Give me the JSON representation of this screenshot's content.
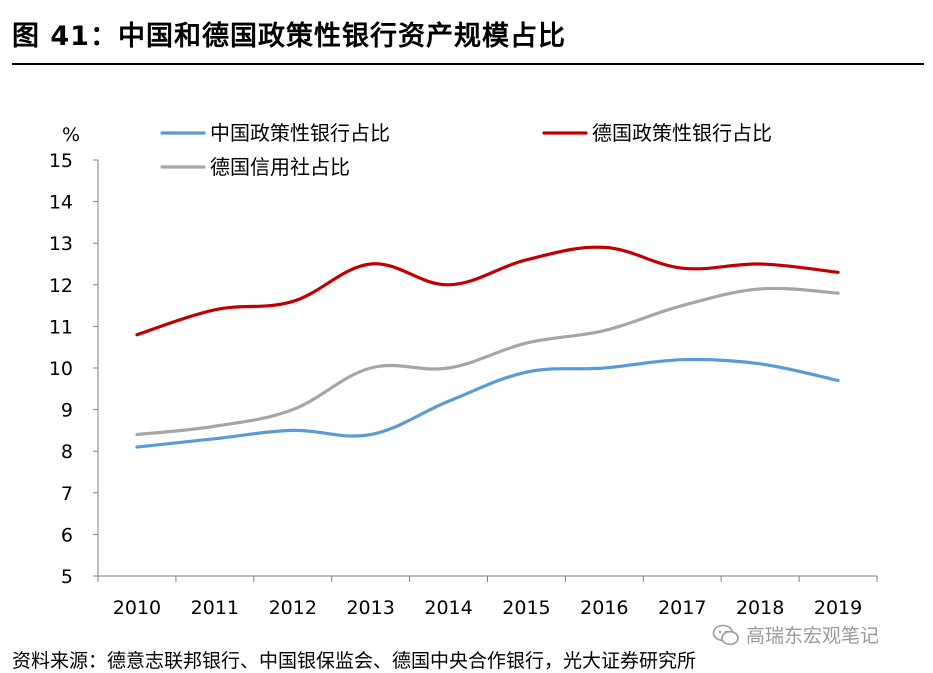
{
  "figure_title": "图 41：中国和德国政策性银行资产规模占比",
  "source_note": "资料来源：德意志联邦银行、中国银保监会、德国中央合作银行，光大证券研究所",
  "watermark": {
    "text": "高瑞东宏观笔记",
    "icon": "wechat-icon"
  },
  "colors": {
    "china": "#5b9bd5",
    "germany": "#c00000",
    "credit": "#a6a6a6"
  },
  "chart_data": {
    "type": "line",
    "title": "",
    "xlabel": "",
    "ylabel": "%",
    "ylim": [
      5,
      15
    ],
    "yticks": [
      "5",
      "6",
      "7",
      "8",
      "9",
      "10",
      "11",
      "12",
      "13",
      "14",
      "15"
    ],
    "categories": [
      "2010",
      "2011",
      "2012",
      "2013",
      "2014",
      "2015",
      "2016",
      "2017",
      "2018",
      "2019"
    ],
    "grid": false,
    "legend_position": "top",
    "series": [
      {
        "name": "中国政策性银行占比",
        "color": "#5b9bd5",
        "values": [
          8.1,
          8.3,
          8.5,
          8.4,
          9.2,
          9.9,
          10.0,
          10.2,
          10.1,
          9.7
        ]
      },
      {
        "name": "德国政策性银行占比",
        "color": "#c00000",
        "values": [
          10.8,
          11.4,
          11.6,
          12.5,
          12.0,
          12.6,
          12.9,
          12.4,
          12.5,
          12.3
        ]
      },
      {
        "name": "德国信用社占比",
        "color": "#a6a6a6",
        "values": [
          8.4,
          8.6,
          9.0,
          10.0,
          10.0,
          10.6,
          10.9,
          11.5,
          11.9,
          11.8
        ]
      }
    ]
  }
}
